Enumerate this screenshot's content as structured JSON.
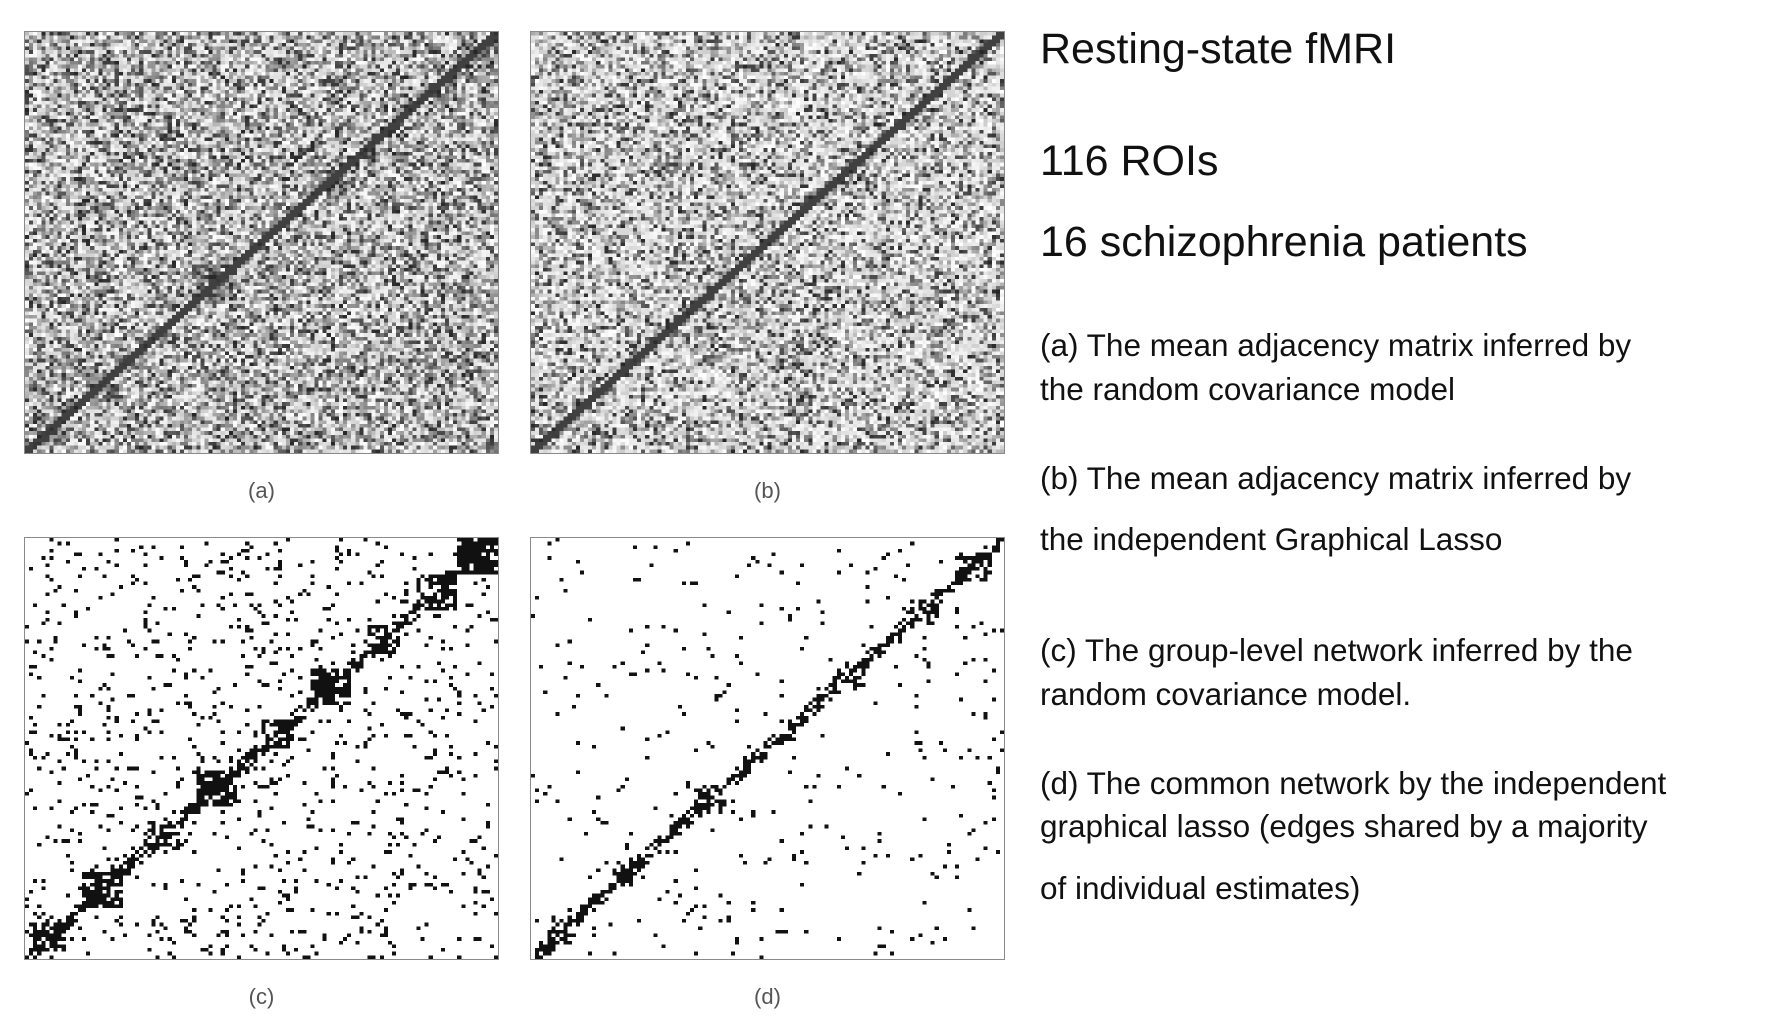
{
  "figure": {
    "panels": [
      {
        "id": "a",
        "label": "(a)",
        "style": "gray",
        "noise": 0.55,
        "diag": 0.95,
        "blocks": "dense"
      },
      {
        "id": "b",
        "label": "(b)",
        "style": "gray",
        "noise": 0.42,
        "diag": 0.9,
        "blocks": "light"
      },
      {
        "id": "c",
        "label": "(c)",
        "style": "binary",
        "noise": 0.07,
        "diag": 0.95,
        "blocks": "dense"
      },
      {
        "id": "d",
        "label": "(d)",
        "style": "binary",
        "noise": 0.025,
        "diag": 0.9,
        "blocks": "light"
      }
    ]
  },
  "headlines": [
    "Resting-state fMRI",
    "116 ROIs",
    "16 schizophrenia patients"
  ],
  "captions": {
    "a": [
      "(a) The mean adjacency matrix inferred by",
      "the random covariance model"
    ],
    "b": [
      "(b) The mean adjacency matrix inferred by",
      "the independent Graphical Lasso"
    ],
    "c": [
      "(c) The group-level network inferred by  the",
      "random covariance model."
    ],
    "d": [
      "(d) The common network by the independent",
      "graphical lasso (edges shared by a majority",
      "of individual estimates)"
    ]
  },
  "colors": {
    "ink": "#111111",
    "panel_border": "#8a8a8a",
    "label_gray": "#555555"
  }
}
